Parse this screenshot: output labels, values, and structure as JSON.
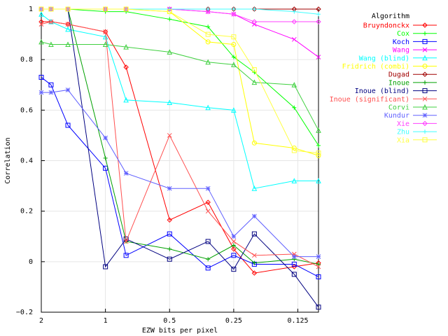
{
  "chart_data": {
    "type": "line",
    "xlabel": "EZW bits per pixel",
    "ylabel": "Correlation",
    "x_scale": "log (reversed)",
    "xlim": [
      2,
      0.1
    ],
    "ylim": [
      -0.2,
      1
    ],
    "x_ticks": [
      {
        "value": 2,
        "label": "2"
      },
      {
        "value": 1,
        "label": "1"
      },
      {
        "value": 0.5,
        "label": "0.5"
      },
      {
        "value": 0.25,
        "label": "0.25"
      },
      {
        "value": 0.125,
        "label": "0.125"
      }
    ],
    "y_ticks": [
      {
        "value": -0.2,
        "label": "−0.2"
      },
      {
        "value": 0,
        "label": "0"
      },
      {
        "value": 0.2,
        "label": "0.2"
      },
      {
        "value": 0.4,
        "label": "0.4"
      },
      {
        "value": 0.6,
        "label": "0.6"
      },
      {
        "value": 0.8,
        "label": "0.8"
      },
      {
        "value": 1,
        "label": "1"
      }
    ],
    "grid": true,
    "legend": {
      "title": "Algorithm",
      "placement": "right"
    },
    "x": [
      2,
      1.8,
      1.5,
      1,
      0.8,
      0.5,
      0.33,
      0.25,
      0.2,
      0.13,
      0.1
    ],
    "series": [
      {
        "name": "Bruyndonckx",
        "color": "#ff0000",
        "marker": "diamond",
        "values": [
          0.95,
          0.95,
          0.94,
          0.91,
          0.77,
          0.165,
          0.235,
          0.05,
          -0.045,
          -0.02,
          -0.005
        ]
      },
      {
        "name": "Cox",
        "color": "#00ff00",
        "marker": "plus",
        "values": [
          1,
          1,
          1,
          0.99,
          0.99,
          0.96,
          0.93,
          0.81,
          0.75,
          0.61,
          0.46
        ]
      },
      {
        "name": "Koch",
        "color": "#0000ff",
        "marker": "square",
        "values": [
          0.73,
          0.7,
          0.54,
          0.37,
          0.025,
          0.11,
          -0.025,
          0.025,
          -0.01,
          -0.01,
          -0.06
        ]
      },
      {
        "name": "Wang",
        "color": "#ff00ff",
        "marker": "cross",
        "values": [
          1,
          1,
          1,
          1,
          1,
          1,
          0.99,
          0.98,
          0.94,
          0.88,
          0.81
        ]
      },
      {
        "name": "Wang (blind)",
        "color": "#00ffff",
        "marker": "triangle",
        "values": [
          0.98,
          0.95,
          0.92,
          0.89,
          0.64,
          0.63,
          0.61,
          0.6,
          0.29,
          0.32,
          0.32
        ]
      },
      {
        "name": "Fridrich (combi)",
        "color": "#ffff00",
        "marker": "circle",
        "values": [
          1,
          1,
          1,
          1,
          1,
          0.99,
          0.87,
          0.86,
          0.47,
          0.45,
          0.42
        ]
      },
      {
        "name": "Dugad",
        "color": "#a00000",
        "marker": "diamond",
        "values": [
          1,
          1,
          1,
          1,
          1,
          1,
          1,
          1,
          1,
          1,
          1
        ]
      },
      {
        "name": "Inoue",
        "color": "#00a000",
        "marker": "plus",
        "values": [
          1,
          1,
          1,
          0.41,
          0.08,
          0.05,
          0.01,
          0.065,
          -0.005,
          0.01,
          -0.01
        ]
      },
      {
        "name": "Inoue (blind)",
        "color": "#000080",
        "marker": "square",
        "values": [
          1,
          1,
          1,
          -0.02,
          0.09,
          0.01,
          0.08,
          -0.03,
          0.11,
          -0.05,
          -0.18
        ]
      },
      {
        "name": "Inoue (significant)",
        "color": "#ff5050",
        "marker": "cross",
        "values": [
          0.94,
          0.95,
          0.94,
          0.91,
          0.08,
          0.5,
          0.2,
          0.08,
          0.025,
          0.03,
          -0.02
        ]
      },
      {
        "name": "Corvi",
        "color": "#40d040",
        "marker": "triangle",
        "values": [
          0.87,
          0.86,
          0.86,
          0.86,
          0.85,
          0.83,
          0.79,
          0.78,
          0.71,
          0.7,
          0.52
        ]
      },
      {
        "name": "Kundur",
        "color": "#6060ff",
        "marker": "asterisk",
        "values": [
          0.67,
          0.67,
          0.68,
          0.49,
          0.35,
          0.29,
          0.29,
          0.1,
          0.18,
          0.02,
          0.02
        ]
      },
      {
        "name": "Xie",
        "color": "#ff40ff",
        "marker": "diamond",
        "values": [
          1,
          1,
          1,
          1,
          1,
          1,
          0.99,
          0.98,
          0.95,
          0.95,
          0.95
        ]
      },
      {
        "name": "Zhu",
        "color": "#40ffff",
        "marker": "plus",
        "values": [
          1,
          1,
          1,
          1,
          1,
          1,
          1,
          1,
          1,
          0.99,
          0.98
        ]
      },
      {
        "name": "Xia",
        "color": "#ffff40",
        "marker": "square",
        "values": [
          1,
          1,
          1,
          1,
          1,
          0.99,
          0.9,
          0.89,
          0.76,
          0.44,
          0.43
        ]
      }
    ]
  }
}
